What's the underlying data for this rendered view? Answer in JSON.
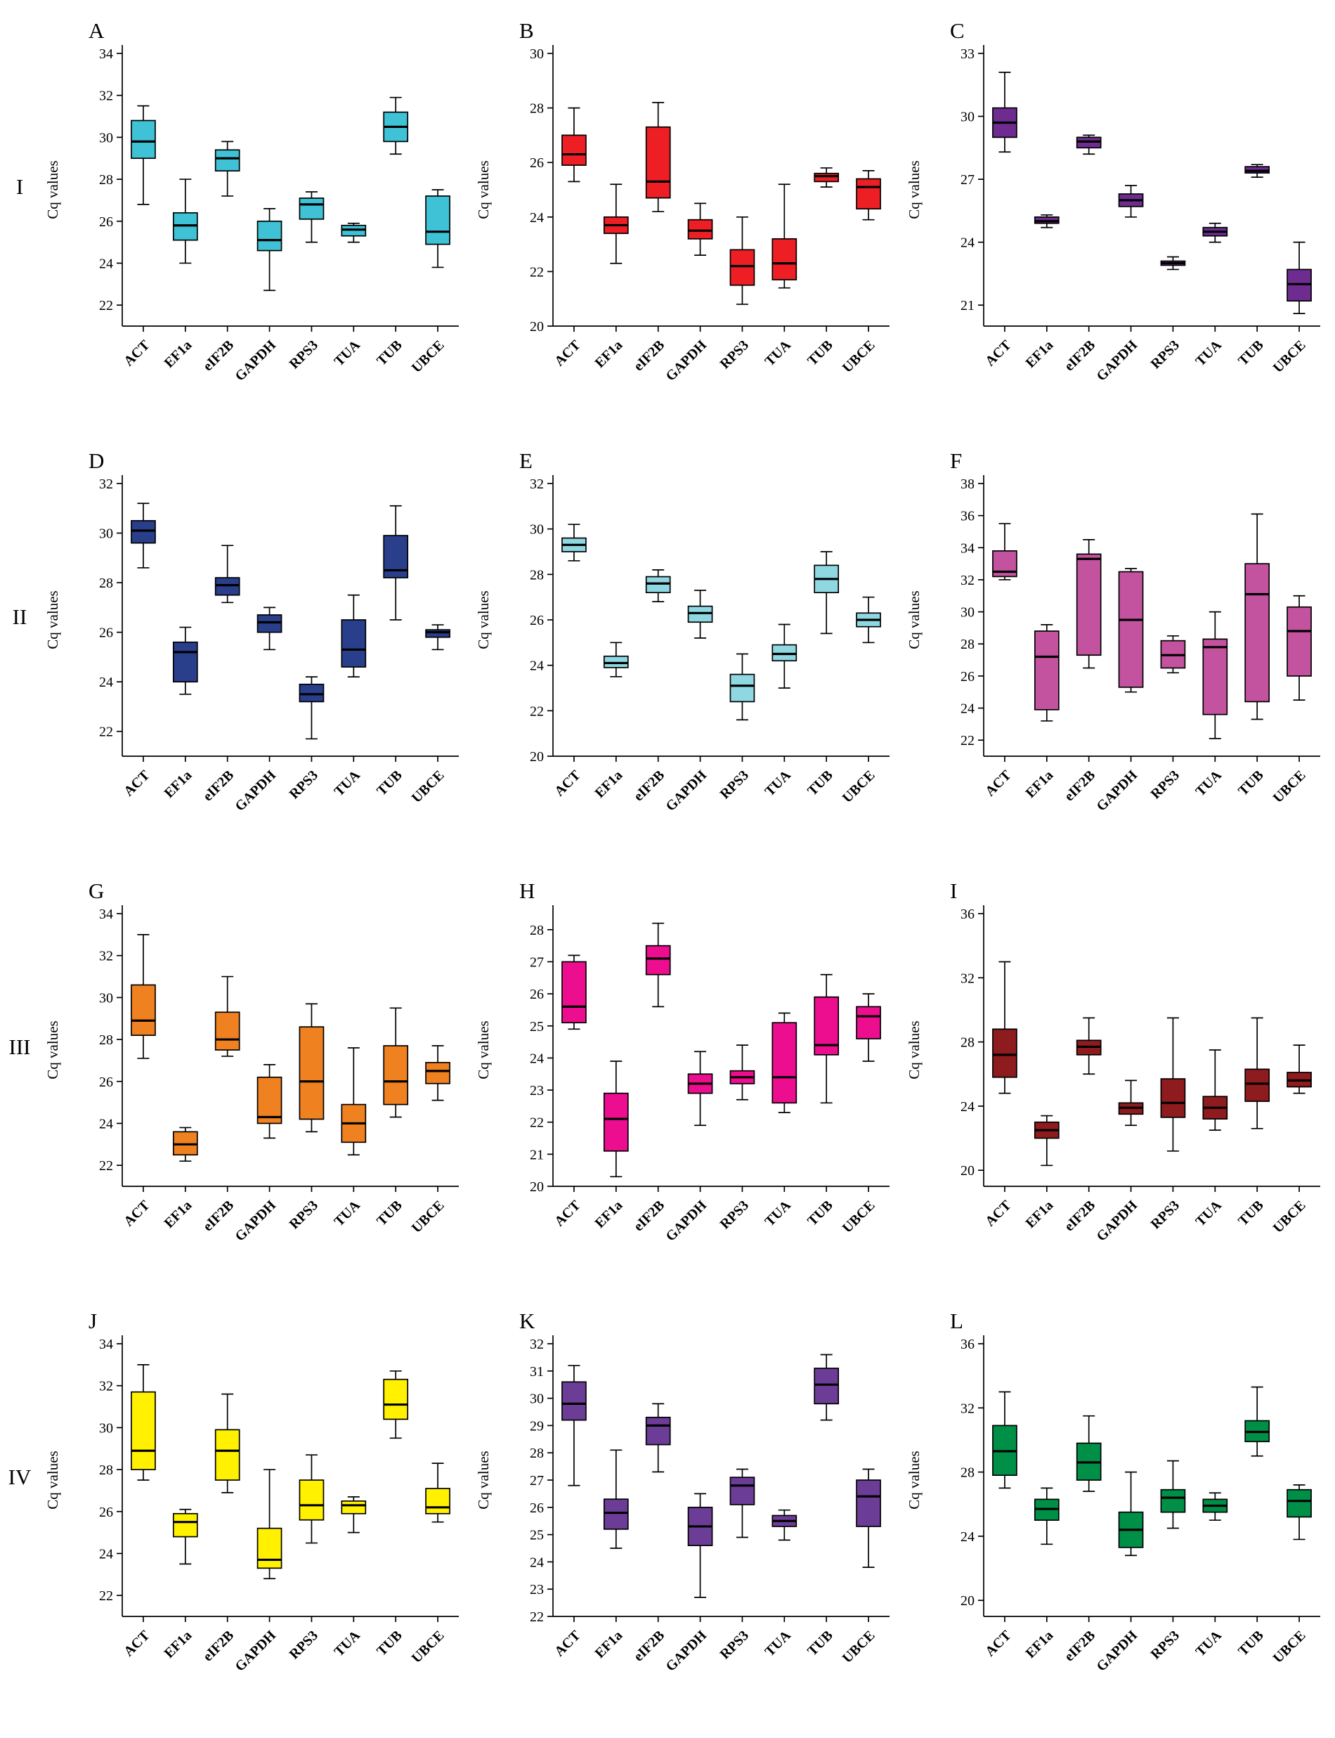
{
  "figure": {
    "ylabel": "Cq values",
    "rows": [
      {
        "label": "I"
      },
      {
        "label": "II"
      },
      {
        "label": "III"
      },
      {
        "label": "IV"
      }
    ]
  },
  "categories": [
    "ACT",
    "EF1a",
    "eIF2B",
    "GAPDH",
    "RPS3",
    "TUA",
    "TUB",
    "UBCE"
  ],
  "box_format": [
    "whisker_low",
    "q1",
    "median",
    "q3",
    "whisker_high"
  ],
  "chart_data": [
    {
      "type": "box",
      "panel": "A",
      "row": "I",
      "color": "#3FC2D5",
      "ylabel": "Cq values",
      "ylim": [
        21,
        34
      ],
      "yticks": [
        22,
        24,
        26,
        28,
        30,
        32,
        34
      ],
      "boxes": [
        [
          26.8,
          29.0,
          29.8,
          30.8,
          31.5
        ],
        [
          24.0,
          25.1,
          25.8,
          26.4,
          28.0
        ],
        [
          27.2,
          28.4,
          29.0,
          29.4,
          29.8
        ],
        [
          22.7,
          24.6,
          25.1,
          26.0,
          26.6
        ],
        [
          25.0,
          26.1,
          26.8,
          27.1,
          27.4
        ],
        [
          25.0,
          25.3,
          25.6,
          25.8,
          25.9
        ],
        [
          29.2,
          29.8,
          30.5,
          31.2,
          31.9
        ],
        [
          23.8,
          24.9,
          25.5,
          27.2,
          27.5
        ]
      ]
    },
    {
      "type": "box",
      "panel": "B",
      "row": "I",
      "color": "#ED1F24",
      "ylabel": "Cq values",
      "ylim": [
        20,
        30
      ],
      "yticks": [
        20,
        22,
        24,
        26,
        28,
        30
      ],
      "boxes": [
        [
          25.3,
          25.9,
          26.3,
          27.0,
          28.0
        ],
        [
          22.3,
          23.4,
          23.7,
          24.0,
          25.2
        ],
        [
          24.2,
          24.7,
          25.3,
          27.3,
          28.2
        ],
        [
          22.6,
          23.2,
          23.5,
          23.9,
          24.5
        ],
        [
          20.8,
          21.5,
          22.2,
          22.8,
          24.0
        ],
        [
          21.4,
          21.7,
          22.3,
          23.2,
          25.2
        ],
        [
          25.1,
          25.3,
          25.5,
          25.6,
          25.8
        ],
        [
          23.9,
          24.3,
          25.1,
          25.4,
          25.7
        ]
      ]
    },
    {
      "type": "box",
      "panel": "C",
      "row": "I",
      "color": "#6E2C90",
      "ylabel": "Cq values",
      "ylim": [
        20,
        33
      ],
      "yticks": [
        21,
        24,
        27,
        30,
        33
      ],
      "boxes": [
        [
          28.3,
          29.0,
          29.7,
          30.4,
          32.1
        ],
        [
          24.7,
          24.9,
          25.0,
          25.2,
          25.3
        ],
        [
          28.2,
          28.5,
          28.8,
          29.0,
          29.1
        ],
        [
          25.2,
          25.7,
          26.0,
          26.3,
          26.7
        ],
        [
          22.7,
          22.9,
          23.0,
          23.1,
          23.3
        ],
        [
          24.0,
          24.3,
          24.5,
          24.7,
          24.9
        ],
        [
          27.1,
          27.3,
          27.4,
          27.6,
          27.7
        ],
        [
          20.6,
          21.2,
          22.0,
          22.7,
          24.0
        ]
      ]
    },
    {
      "type": "box",
      "panel": "D",
      "row": "II",
      "color": "#293F8C",
      "ylabel": "Cq values",
      "ylim": [
        21,
        32
      ],
      "yticks": [
        22,
        24,
        26,
        28,
        30,
        32
      ],
      "boxes": [
        [
          28.6,
          29.6,
          30.1,
          30.5,
          31.2
        ],
        [
          23.5,
          24.0,
          25.2,
          25.6,
          26.2
        ],
        [
          27.2,
          27.5,
          27.9,
          28.2,
          29.5
        ],
        [
          25.3,
          26.0,
          26.4,
          26.7,
          27.0
        ],
        [
          21.7,
          23.2,
          23.5,
          23.9,
          24.2
        ],
        [
          24.2,
          24.6,
          25.3,
          26.5,
          27.5
        ],
        [
          26.5,
          28.2,
          28.5,
          29.9,
          31.1
        ],
        [
          25.3,
          25.8,
          26.0,
          26.1,
          26.3
        ]
      ]
    },
    {
      "type": "box",
      "panel": "E",
      "row": "II",
      "color": "#8FD8E2",
      "ylabel": "Cq values",
      "ylim": [
        20,
        32
      ],
      "yticks": [
        20,
        22,
        24,
        26,
        28,
        30,
        32
      ],
      "boxes": [
        [
          28.6,
          29.0,
          29.3,
          29.6,
          30.2
        ],
        [
          23.5,
          23.9,
          24.1,
          24.4,
          25.0
        ],
        [
          26.8,
          27.2,
          27.6,
          27.9,
          28.2
        ],
        [
          25.2,
          25.9,
          26.3,
          26.6,
          27.3
        ],
        [
          21.6,
          22.4,
          23.1,
          23.6,
          24.5
        ],
        [
          23.0,
          24.2,
          24.5,
          24.9,
          25.8
        ],
        [
          25.4,
          27.2,
          27.8,
          28.4,
          29.0
        ],
        [
          25.0,
          25.7,
          26.0,
          26.3,
          27.0
        ]
      ]
    },
    {
      "type": "box",
      "panel": "F",
      "row": "II",
      "color": "#C4539F",
      "ylabel": "Cq values",
      "ylim": [
        21,
        38
      ],
      "yticks": [
        22,
        24,
        26,
        28,
        30,
        32,
        34,
        36,
        38
      ],
      "boxes": [
        [
          32.0,
          32.2,
          32.5,
          33.8,
          35.5
        ],
        [
          23.2,
          23.9,
          27.2,
          28.8,
          29.2
        ],
        [
          26.5,
          27.3,
          33.3,
          33.6,
          34.5
        ],
        [
          25.0,
          25.3,
          29.5,
          32.5,
          32.7
        ],
        [
          26.2,
          26.5,
          27.3,
          28.2,
          28.5
        ],
        [
          22.1,
          23.6,
          27.8,
          28.3,
          30.0
        ],
        [
          23.3,
          24.4,
          31.1,
          33.0,
          36.1
        ],
        [
          24.5,
          26.0,
          28.8,
          30.3,
          31.0
        ]
      ]
    },
    {
      "type": "box",
      "panel": "G",
      "row": "III",
      "color": "#F08121",
      "ylabel": "Cq values",
      "ylim": [
        21,
        34
      ],
      "yticks": [
        22,
        24,
        26,
        28,
        30,
        32,
        34
      ],
      "boxes": [
        [
          27.1,
          28.2,
          28.9,
          30.6,
          33.0
        ],
        [
          22.2,
          22.5,
          23.0,
          23.6,
          23.8
        ],
        [
          27.2,
          27.5,
          28.0,
          29.3,
          31.0
        ],
        [
          23.3,
          24.0,
          24.3,
          26.2,
          26.8
        ],
        [
          23.6,
          24.2,
          26.0,
          28.6,
          29.7
        ],
        [
          22.5,
          23.1,
          24.0,
          24.9,
          27.6
        ],
        [
          24.3,
          24.9,
          26.0,
          27.7,
          29.5
        ],
        [
          25.1,
          25.9,
          26.5,
          26.9,
          27.7
        ]
      ]
    },
    {
      "type": "box",
      "panel": "H",
      "row": "III",
      "color": "#EC0E8F",
      "ylabel": "Cq values",
      "ylim": [
        20,
        28.5
      ],
      "yticks": [
        20,
        21,
        22,
        23,
        24,
        25,
        26,
        27,
        28
      ],
      "boxes": [
        [
          24.9,
          25.1,
          25.6,
          27.0,
          27.2
        ],
        [
          20.3,
          21.1,
          22.1,
          22.9,
          23.9
        ],
        [
          25.6,
          26.6,
          27.1,
          27.5,
          28.2
        ],
        [
          21.9,
          22.9,
          23.2,
          23.5,
          24.2
        ],
        [
          22.7,
          23.2,
          23.4,
          23.6,
          24.4
        ],
        [
          22.3,
          22.6,
          23.4,
          25.1,
          25.4
        ],
        [
          22.6,
          24.1,
          24.4,
          25.9,
          26.6
        ],
        [
          23.9,
          24.6,
          25.3,
          25.6,
          26.0
        ]
      ]
    },
    {
      "type": "box",
      "panel": "I",
      "row": "III",
      "color": "#8E1B1E",
      "ylabel": "Cq values",
      "ylim": [
        19,
        36
      ],
      "yticks": [
        20,
        24,
        28,
        32,
        36
      ],
      "boxes": [
        [
          24.8,
          25.8,
          27.2,
          28.8,
          33.0
        ],
        [
          20.3,
          22.0,
          22.5,
          23.0,
          23.4
        ],
        [
          26.0,
          27.2,
          27.7,
          28.1,
          29.5
        ],
        [
          22.8,
          23.5,
          23.9,
          24.2,
          25.6
        ],
        [
          21.2,
          23.3,
          24.2,
          25.7,
          29.5
        ],
        [
          22.5,
          23.2,
          23.9,
          24.6,
          27.5
        ],
        [
          22.6,
          24.3,
          25.4,
          26.3,
          29.5
        ],
        [
          24.8,
          25.2,
          25.6,
          26.1,
          27.8
        ]
      ]
    },
    {
      "type": "box",
      "panel": "J",
      "row": "IV",
      "color": "#FFF100",
      "ylabel": "Cq values",
      "ylim": [
        21,
        34
      ],
      "yticks": [
        22,
        24,
        26,
        28,
        30,
        32,
        34
      ],
      "boxes": [
        [
          27.5,
          28.0,
          28.9,
          31.7,
          33.0
        ],
        [
          23.5,
          24.8,
          25.5,
          25.9,
          26.1
        ],
        [
          26.9,
          27.5,
          28.9,
          29.9,
          31.6
        ],
        [
          22.8,
          23.3,
          23.7,
          25.2,
          28.0
        ],
        [
          24.5,
          25.6,
          26.3,
          27.5,
          28.7
        ],
        [
          25.0,
          25.9,
          26.3,
          26.5,
          26.7
        ],
        [
          29.5,
          30.4,
          31.1,
          32.3,
          32.7
        ],
        [
          25.5,
          25.9,
          26.2,
          27.1,
          28.3
        ]
      ]
    },
    {
      "type": "box",
      "panel": "K",
      "row": "IV",
      "color": "#6C3D97",
      "ylabel": "Cq values",
      "ylim": [
        22,
        32
      ],
      "yticks": [
        22,
        23,
        24,
        25,
        26,
        27,
        28,
        29,
        30,
        31,
        32
      ],
      "boxes": [
        [
          26.8,
          29.2,
          29.8,
          30.6,
          31.2
        ],
        [
          24.5,
          25.2,
          25.8,
          26.3,
          28.1
        ],
        [
          27.3,
          28.3,
          29.0,
          29.3,
          29.8
        ],
        [
          22.7,
          24.6,
          25.3,
          26.0,
          26.5
        ],
        [
          24.9,
          26.1,
          26.8,
          27.1,
          27.4
        ],
        [
          24.8,
          25.3,
          25.5,
          25.7,
          25.9
        ],
        [
          29.2,
          29.8,
          30.5,
          31.1,
          31.6
        ],
        [
          23.8,
          25.3,
          26.4,
          27.0,
          27.4
        ]
      ]
    },
    {
      "type": "box",
      "panel": "L",
      "row": "IV",
      "color": "#008F47",
      "ylabel": "Cq values",
      "ylim": [
        19,
        36
      ],
      "yticks": [
        20,
        24,
        28,
        32,
        36
      ],
      "boxes": [
        [
          27.0,
          27.8,
          29.3,
          30.9,
          33.0
        ],
        [
          23.5,
          25.0,
          25.7,
          26.3,
          27.0
        ],
        [
          26.8,
          27.5,
          28.6,
          29.8,
          31.5
        ],
        [
          22.8,
          23.3,
          24.4,
          25.5,
          28.0
        ],
        [
          24.5,
          25.5,
          26.4,
          26.9,
          28.7
        ],
        [
          25.0,
          25.5,
          25.9,
          26.3,
          26.7
        ],
        [
          29.0,
          29.9,
          30.5,
          31.2,
          33.3
        ],
        [
          23.8,
          25.2,
          26.2,
          26.9,
          27.2
        ]
      ]
    }
  ]
}
